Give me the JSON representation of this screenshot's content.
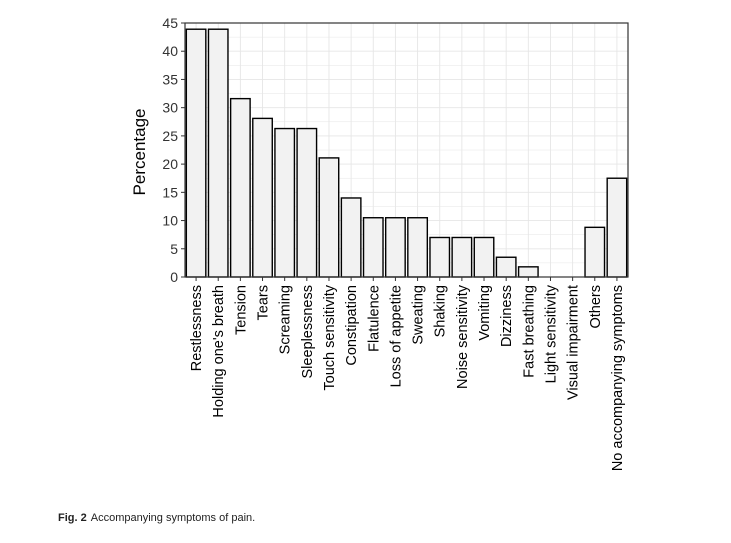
{
  "caption": {
    "label": "Fig. 2",
    "text": "Accompanying symptoms of pain."
  },
  "chart_data": {
    "type": "bar",
    "title": "",
    "xlabel": "",
    "ylabel": "Percentage",
    "ylim": [
      0,
      45
    ],
    "yticks": [
      0,
      5,
      10,
      15,
      20,
      25,
      30,
      35,
      40,
      45
    ],
    "grid": true,
    "categories": [
      "Restlessness",
      "Holding one's breath",
      "Tension",
      "Tears",
      "Screaming",
      "Sleeplessness",
      "Touch sensitivity",
      "Constipation",
      "Flatulence",
      "Loss of appetite",
      "Sweating",
      "Shaking",
      "Noise sensitivity",
      "Vomiting",
      "Dizziness",
      "Fast breathing",
      "Light sensitivity",
      "Visual impairment",
      "Others",
      "No accompanying symptoms"
    ],
    "values": [
      43.9,
      43.9,
      31.6,
      28.1,
      26.3,
      26.3,
      21.1,
      14.0,
      10.5,
      10.5,
      10.5,
      7.0,
      7.0,
      7.0,
      3.5,
      1.8,
      0,
      0,
      8.8,
      17.5
    ],
    "colors": {
      "bar_fill": "#f2f2f2",
      "bar_stroke": "#000000",
      "grid": "#e6e6e6",
      "panel_border": "#333333"
    }
  }
}
